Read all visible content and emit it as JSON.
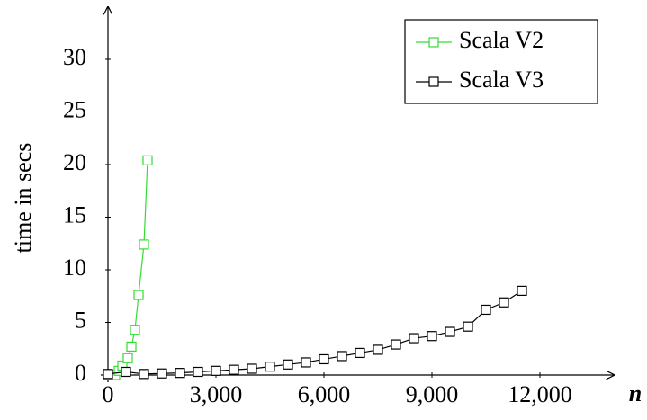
{
  "chart_data": {
    "type": "line",
    "x_label": "n",
    "y_label": "time in secs",
    "xlim": [
      0,
      14000
    ],
    "ylim": [
      0,
      35
    ],
    "xticks": [
      0,
      {
        "value": 3000,
        "label": "3,000"
      },
      {
        "value": 6000,
        "label": "6,000"
      },
      {
        "value": 9000,
        "label": "9,000"
      },
      {
        "value": 12000,
        "label": "12,000"
      }
    ],
    "yticks": [
      0,
      5,
      10,
      15,
      20,
      25,
      30
    ],
    "grid": false,
    "legend": "upper right",
    "series": [
      {
        "name": "Scala V2",
        "color": "#33dd33",
        "x": [
          0,
          200,
          300,
          400,
          550,
          650,
          750,
          850,
          1000,
          1100
        ],
        "values": [
          0,
          0,
          0.4,
          0.9,
          1.6,
          2.7,
          4.3,
          7.6,
          12.4,
          20.4
        ]
      },
      {
        "name": "Scala V3",
        "color": "#000000",
        "x": [
          0,
          500,
          1000,
          1500,
          2000,
          2500,
          3000,
          3500,
          4000,
          4500,
          5000,
          5500,
          6000,
          6500,
          7000,
          7500,
          8000,
          8500,
          9000,
          9500,
          10000,
          10500,
          11000,
          11500
        ],
        "values": [
          0.1,
          0.3,
          0.1,
          0.15,
          0.2,
          0.3,
          0.4,
          0.5,
          0.6,
          0.8,
          1.0,
          1.2,
          1.5,
          1.8,
          2.1,
          2.4,
          2.9,
          3.5,
          3.7,
          4.1,
          4.6,
          6.2,
          6.9,
          8.0
        ]
      }
    ]
  }
}
